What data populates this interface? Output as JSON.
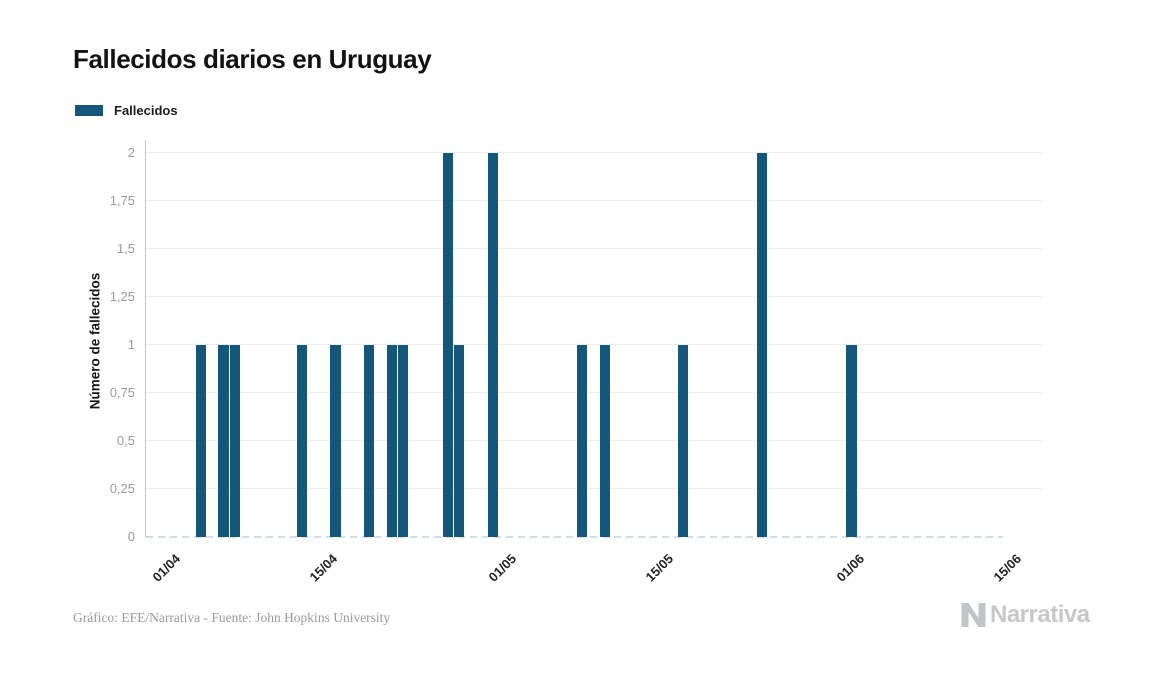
{
  "page": {
    "background": "#ffffff"
  },
  "header": {
    "title": "Fallecidos diarios en Uruguay"
  },
  "legend": {
    "items": [
      {
        "label": "Fallecidos",
        "color": "#15567b"
      }
    ]
  },
  "chart_data": {
    "type": "bar",
    "title": "Fallecidos diarios en Uruguay",
    "xlabel": "",
    "ylabel": "Número de fallecidos",
    "ylim": [
      0,
      2.07
    ],
    "grid": true,
    "legend_position": "top-left",
    "bar_color": "#15567b",
    "x_tick_labels": [
      "01/04",
      "15/04",
      "01/05",
      "15/05",
      "01/06",
      "15/06"
    ],
    "y_ticks": [
      {
        "value": 0,
        "label": "0"
      },
      {
        "value": 0.25,
        "label": "0,25"
      },
      {
        "value": 0.5,
        "label": "0,5"
      },
      {
        "value": 0.75,
        "label": "0,75"
      },
      {
        "value": 1,
        "label": "1"
      },
      {
        "value": 1.25,
        "label": "1,25"
      },
      {
        "value": 1.5,
        "label": "1,5"
      },
      {
        "value": 1.75,
        "label": "1,75"
      },
      {
        "value": 2,
        "label": "2"
      }
    ],
    "series": [
      {
        "name": "Fallecidos",
        "color": "#15567b",
        "points": [
          {
            "date": "04/04",
            "value": 1
          },
          {
            "date": "06/04",
            "value": 1
          },
          {
            "date": "07/04",
            "value": 1
          },
          {
            "date": "13/04",
            "value": 1
          },
          {
            "date": "16/04",
            "value": 1
          },
          {
            "date": "19/04",
            "value": 1
          },
          {
            "date": "21/04",
            "value": 1
          },
          {
            "date": "22/04",
            "value": 1
          },
          {
            "date": "26/04",
            "value": 2
          },
          {
            "date": "27/04",
            "value": 1
          },
          {
            "date": "30/04",
            "value": 2
          },
          {
            "date": "08/05",
            "value": 1
          },
          {
            "date": "10/05",
            "value": 1
          },
          {
            "date": "17/05",
            "value": 1
          },
          {
            "date": "24/05",
            "value": 2
          },
          {
            "date": "01/06",
            "value": 1
          }
        ]
      }
    ]
  },
  "footer": {
    "credit": "Gráfico: EFE/Narrativa - Fuente: John Hopkins University",
    "brand": "Narrativa"
  }
}
